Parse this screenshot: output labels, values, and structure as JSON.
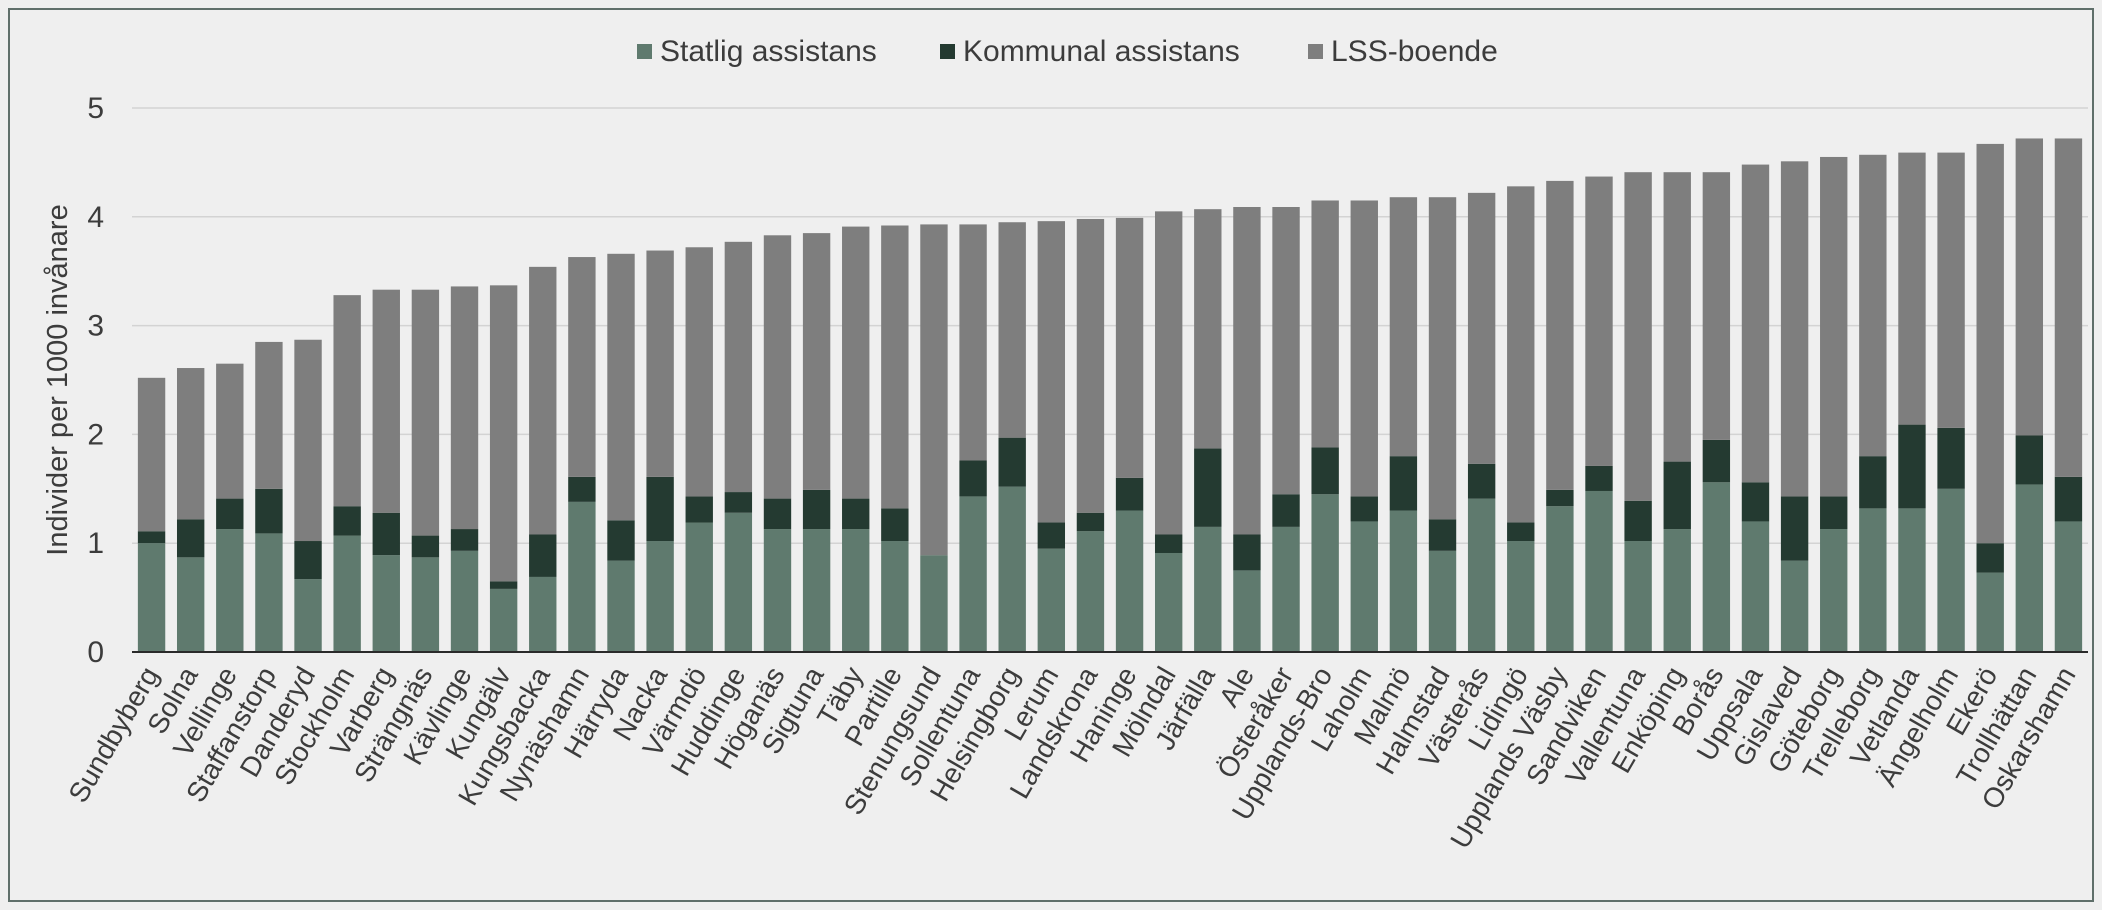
{
  "chart_data": {
    "type": "bar",
    "stacked": true,
    "title": "",
    "xlabel": "",
    "ylabel": "Individer per 1000 invånare",
    "ylim": [
      0,
      5
    ],
    "yticks": [
      "0",
      "1",
      "2",
      "3",
      "4",
      "5"
    ],
    "grid": true,
    "legend_position": "top-center",
    "categories": [
      "Sundbyberg",
      "Solna",
      "Vellinge",
      "Staffanstorp",
      "Danderyd",
      "Stockholm",
      "Varberg",
      "Strängnäs",
      "Kävlinge",
      "Kungälv",
      "Kungsbacka",
      "Nynäshamn",
      "Härryda",
      "Nacka",
      "Värmdö",
      "Huddinge",
      "Höganäs",
      "Sigtuna",
      "Täby",
      "Partille",
      "Stenungsund",
      "Sollentuna",
      "Helsingborg",
      "Lerum",
      "Landskrona",
      "Haninge",
      "Mölndal",
      "Järfälla",
      "Ale",
      "Österåker",
      "Upplands-Bro",
      "Laholm",
      "Malmö",
      "Halmstad",
      "Västerås",
      "Lidingö",
      "Upplands Väsby",
      "Sandviken",
      "Vallentuna",
      "Enköping",
      "Borås",
      "Uppsala",
      "Gislaved",
      "Göteborg",
      "Trelleborg",
      "Vetlanda",
      "Ängelholm",
      "Ekerö",
      "Trollhättan",
      "Oskarshamn"
    ],
    "series": [
      {
        "name": "Statlig assistans",
        "color": "#5f7a6e",
        "values": [
          1.0,
          0.87,
          1.13,
          1.09,
          0.67,
          1.07,
          0.89,
          0.87,
          0.93,
          0.58,
          0.69,
          1.38,
          0.84,
          1.02,
          1.19,
          1.28,
          1.13,
          1.13,
          1.13,
          1.02,
          0.89,
          1.43,
          1.52,
          0.95,
          1.11,
          1.3,
          0.91,
          1.15,
          0.75,
          1.15,
          1.45,
          1.2,
          1.3,
          0.93,
          1.41,
          1.02,
          1.34,
          1.48,
          1.02,
          1.13,
          1.56,
          1.2,
          0.84,
          1.13,
          1.32,
          1.32,
          1.5,
          0.73,
          1.54,
          1.2
        ]
      },
      {
        "name": "Kommunal assistans",
        "color": "#243a31",
        "values": [
          0.11,
          0.35,
          0.28,
          0.41,
          0.35,
          0.27,
          0.39,
          0.2,
          0.2,
          0.07,
          0.39,
          0.23,
          0.37,
          0.59,
          0.24,
          0.19,
          0.28,
          0.36,
          0.28,
          0.3,
          0.0,
          0.33,
          0.45,
          0.24,
          0.17,
          0.3,
          0.17,
          0.72,
          0.33,
          0.3,
          0.43,
          0.23,
          0.5,
          0.29,
          0.32,
          0.17,
          0.15,
          0.23,
          0.37,
          0.62,
          0.39,
          0.36,
          0.59,
          0.3,
          0.48,
          0.77,
          0.56,
          0.27,
          0.45,
          0.41
        ]
      },
      {
        "name": "LSS-boende",
        "color": "#7e7e7e",
        "values": [
          1.41,
          1.39,
          1.24,
          1.35,
          1.85,
          1.94,
          2.05,
          2.26,
          2.23,
          2.72,
          2.46,
          2.02,
          2.45,
          2.08,
          2.29,
          2.3,
          2.42,
          2.36,
          2.5,
          2.6,
          3.04,
          2.17,
          1.98,
          2.77,
          2.7,
          2.39,
          2.97,
          2.2,
          3.01,
          2.64,
          2.27,
          2.72,
          2.38,
          2.96,
          2.49,
          3.09,
          2.84,
          2.66,
          3.02,
          2.66,
          2.46,
          2.92,
          3.08,
          3.12,
          2.77,
          2.5,
          2.53,
          3.67,
          2.73,
          3.11
        ]
      }
    ]
  }
}
